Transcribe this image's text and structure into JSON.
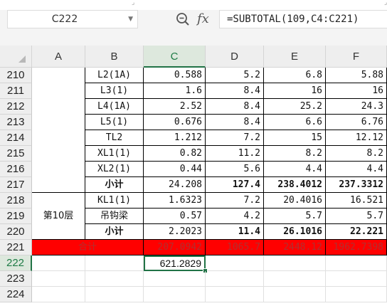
{
  "namebox": {
    "value": "C222"
  },
  "formula": {
    "fx_label": "fx",
    "value": "=SUBTOTAL(109,C4:C221)"
  },
  "columns": [
    "A",
    "B",
    "C",
    "D",
    "E",
    "F"
  ],
  "selected_column": "C",
  "rows": [
    {
      "num": "210",
      "b": "L2(1A)",
      "c": "0.588",
      "d": "5.2",
      "e": "6.8",
      "f": "5.88"
    },
    {
      "num": "211",
      "b": "L3(1)",
      "c": "1.6",
      "d": "8.4",
      "e": "16",
      "f": "16"
    },
    {
      "num": "212",
      "b": "L4(1A)",
      "c": "2.52",
      "d": "8.4",
      "e": "25.2",
      "f": "24.3"
    },
    {
      "num": "213",
      "b": "L5(1)",
      "c": "0.676",
      "d": "8.4",
      "e": "6.6",
      "f": "6.76"
    },
    {
      "num": "214",
      "b": "TL2",
      "c": "1.212",
      "d": "7.2",
      "e": "15",
      "f": "12.12"
    },
    {
      "num": "215",
      "b": "XL1(1)",
      "c": "0.82",
      "d": "11.2",
      "e": "8.2",
      "f": "8.2"
    },
    {
      "num": "216",
      "b": "XL2(1)",
      "c": "0.44",
      "d": "5.6",
      "e": "4.4",
      "f": "4.4"
    },
    {
      "num": "217",
      "b": "小计",
      "c": "24.208",
      "d": "127.4",
      "e": "238.4012",
      "f": "237.3312",
      "bold": true
    },
    {
      "num": "218",
      "b": "KL1(1)",
      "c": "1.6323",
      "d": "7.2",
      "e": "20.4016",
      "f": "16.521"
    },
    {
      "num": "219",
      "b": "吊钩梁",
      "c": "0.57",
      "d": "4.2",
      "e": "5.7",
      "f": "5.7"
    },
    {
      "num": "220",
      "b": "小计",
      "c": "2.2023",
      "d": "11.4",
      "e": "26.1016",
      "f": "22.221",
      "bold": true
    }
  ],
  "merged_a_218_220": "第10层",
  "total_row": {
    "num": "221",
    "label": "合计",
    "c": "207.0942",
    "d": "1065.7",
    "e": "2448.12",
    "f": "1962.7398"
  },
  "active_row": {
    "num": "222",
    "c": "621.2829"
  },
  "empty_rows": [
    "223",
    "224"
  ]
}
